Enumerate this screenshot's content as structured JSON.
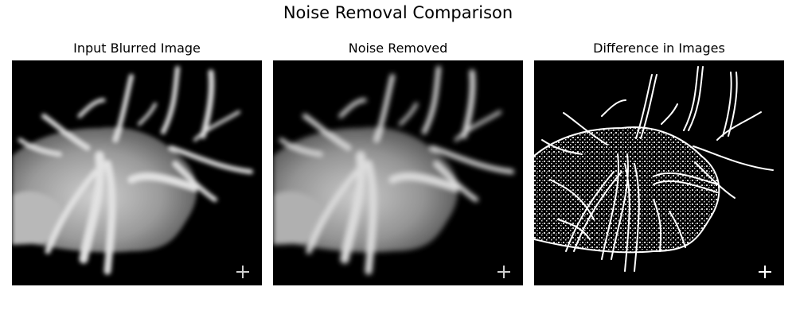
{
  "figure": {
    "title": "Noise Removal Comparison"
  },
  "panels": [
    {
      "title": "Input Blurred Image",
      "icon": "medical-scan-image"
    },
    {
      "title": "Noise Removed",
      "icon": "medical-scan-image"
    },
    {
      "title": "Difference in Images",
      "icon": "edge-difference-image"
    }
  ],
  "colors": {
    "background": "#ffffff",
    "image_background": "#000000",
    "vessel_light": "#d8d8d8",
    "edge_white": "#ffffff"
  }
}
